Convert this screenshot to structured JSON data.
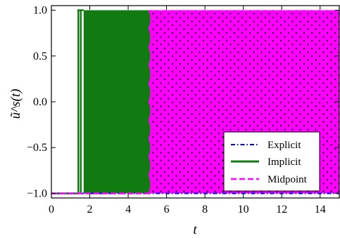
{
  "chart_data": {
    "type": "line",
    "title": "",
    "xlabel": "t",
    "ylabel": "ũ^s(t)",
    "xlim": [
      0,
      15
    ],
    "ylim": [
      -1.05,
      1.05
    ],
    "x_ticks": [
      0,
      2,
      4,
      6,
      8,
      10,
      12,
      14
    ],
    "x_tick_labels": [
      "0",
      "2",
      "4",
      "6",
      "8",
      "10",
      "12",
      "14"
    ],
    "y_ticks": [
      -1.0,
      -0.5,
      0.0,
      0.5,
      1.0
    ],
    "y_tick_labels": [
      "−1.0",
      "−0.5",
      "0.0",
      "0.5",
      "1.0"
    ],
    "grid": false,
    "legend_position": "lower-right",
    "series": [
      {
        "name": "Explicit",
        "style": "dash-dot",
        "color": "#0000ee",
        "x": [
          0,
          15
        ],
        "y": [
          -1.0,
          -1.0
        ]
      },
      {
        "name": "Implicit",
        "style": "solid",
        "color": "#117a11",
        "description_points": {
          "x": [
            0,
            1.35,
            1.35,
            5.15,
            5.15,
            15
          ],
          "y": [
            -1.0,
            -1.0,
            1.0,
            1.0,
            -1.0,
            -1.0
          ]
        },
        "switching_onset_t": 1.35,
        "switching_end_t": 5.15
      },
      {
        "name": "Midpoint",
        "style": "dashed",
        "color": "#ff00ff",
        "switching_onset_t": 5.15,
        "switching_end_t": 15
      }
    ]
  }
}
